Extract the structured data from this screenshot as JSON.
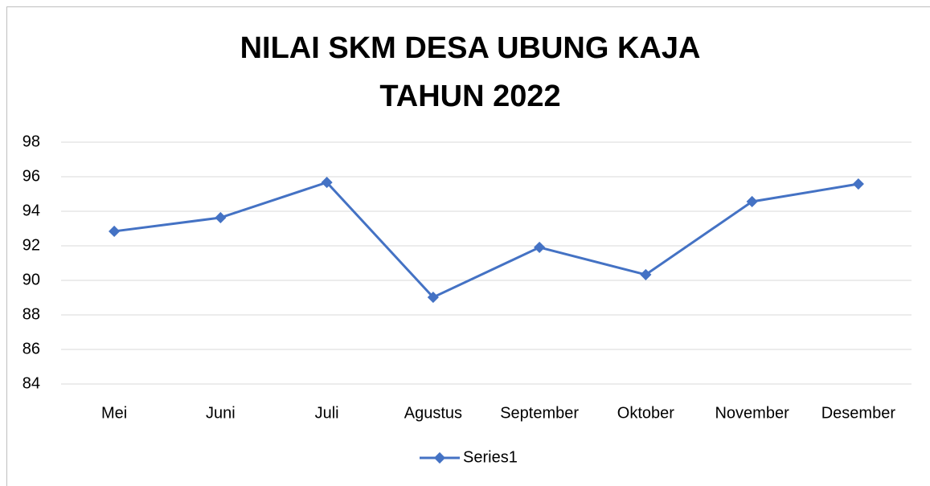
{
  "chart_data": {
    "type": "line",
    "title": [
      "NILAI SKM DESA UBUNG KAJA",
      "TAHUN 2022"
    ],
    "categories": [
      "Mei",
      "Juni",
      "Juli",
      "Agustus",
      "September",
      "Oktober",
      "November",
      "Desember"
    ],
    "series": [
      {
        "name": "Series1",
        "color": "#4472c4",
        "values": [
          92.84,
          93.63,
          95.67,
          89.02,
          91.91,
          90.33,
          94.56,
          95.58
        ]
      }
    ],
    "ylim": [
      84,
      98
    ],
    "yticks": [
      84,
      86,
      88,
      90,
      92,
      94,
      96,
      98
    ],
    "grid": true,
    "legend": "bottom"
  }
}
